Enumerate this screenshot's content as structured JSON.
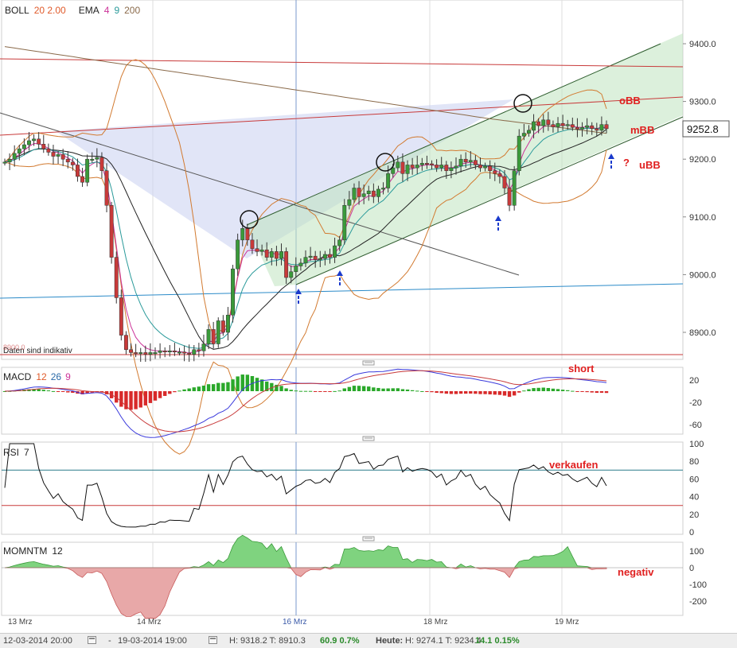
{
  "panels": {
    "price": {
      "legend": [
        {
          "label": "BOLL",
          "params": "20 2.00",
          "color": "#e05a2a"
        },
        {
          "label": "EMA",
          "params": "4",
          "color": "#cc3399",
          "p2": "9",
          "c2": "#2a9a9a",
          "p3": "200",
          "c3": "#8a6a4a"
        }
      ]
    },
    "macd": {
      "label": "MACD",
      "params": [
        "12",
        "26",
        "9"
      ],
      "param_colors": [
        "#e05a2a",
        "#2a6aa8",
        "#cc3399"
      ]
    },
    "rsi": {
      "label": "RSI",
      "params": "7"
    },
    "momentum": {
      "label": "MOMNTM",
      "params": "12"
    }
  },
  "price_axis": {
    "ticks": [
      "9400.0",
      "9300.0",
      "9200.0",
      "9100.0",
      "9000.0",
      "8900.0"
    ],
    "current": "9252.8",
    "hidden_label": "8900.0"
  },
  "macd_axis": {
    "ticks": [
      "20",
      "-20",
      "-60"
    ]
  },
  "rsi_axis": {
    "ticks": [
      "100",
      "80",
      "60",
      "40",
      "20",
      "0"
    ]
  },
  "mom_axis": {
    "ticks": [
      "100",
      "0",
      "-100",
      "-200"
    ]
  },
  "x_axis": {
    "labels": [
      "13 Mrz",
      "14 Mrz",
      "16 Mrz",
      "18 Mrz",
      "19 Mrz"
    ],
    "highlight": "16 Mrz"
  },
  "notes": {
    "disclaimer": "Daten sind indikativ",
    "obb": "oBB",
    "mbb": "mBB",
    "ubb": "uBB",
    "question": "?",
    "short": "short",
    "verkaufen": "verkaufen",
    "negativ": "negativ"
  },
  "footer": {
    "from": "12-03-2014 20:00",
    "to": "19-03-2014 19:00",
    "sep": "-",
    "hl": "H: 9318.2  T: 8910.3",
    "chg": "60.9  0.7%",
    "heute_label": "Heute:",
    "heute_hl": "H: 9274.1  T: 9234.4",
    "heute_chg": "14.1  0.15%"
  },
  "colors": {
    "up": "#3a9a3a",
    "down": "#c83a3a",
    "bb": "#d27a30",
    "ema4": "#cc3399",
    "ema9": "#2a9a9a",
    "ema200": "#8a6a4a",
    "macd": "#3a3adc",
    "signal": "#c83a3a",
    "annot": "#e02020",
    "channel": "#2e5c2e"
  },
  "chart_data": [
    {
      "type": "candlestick",
      "name": "price",
      "ylim": [
        8850,
        9430
      ],
      "close_series": [
        9195,
        9200,
        9210,
        9218,
        9225,
        9232,
        9235,
        9226,
        9218,
        9212,
        9205,
        9208,
        9200,
        9195,
        9190,
        9170,
        9160,
        9200,
        9200,
        9203,
        9180,
        9120,
        9030,
        8960,
        8895,
        8870,
        8865,
        8863,
        8865,
        8862,
        8865,
        8865,
        8868,
        8866,
        8868,
        8866,
        8866,
        8864,
        8862,
        8870,
        8868,
        8880,
        8905,
        8880,
        8920,
        8900,
        8930,
        9010,
        9060,
        9080,
        9060,
        9045,
        9040,
        9043,
        9030,
        9040,
        9028,
        9040,
        8995,
        9005,
        9015,
        9020,
        9030,
        9032,
        9026,
        9028,
        9035,
        9030,
        9050,
        9060,
        9120,
        9130,
        9150,
        9135,
        9140,
        9145,
        9135,
        9148,
        9150,
        9175,
        9185,
        9195,
        9175,
        9190,
        9185,
        9190,
        9193,
        9192,
        9190,
        9185,
        9190,
        9180,
        9185,
        9188,
        9200,
        9195,
        9198,
        9190,
        9185,
        9188,
        9180,
        9175,
        9170,
        9150,
        9120,
        9180,
        9240,
        9245,
        9250,
        9265,
        9258,
        9268,
        9260,
        9256,
        9262,
        9258,
        9260,
        9255,
        9252,
        9255,
        9258,
        9253,
        9250,
        9260,
        9252.8
      ],
      "bollinger_bands": [
        "oBB",
        "mBB",
        "uBB"
      ],
      "ema": [
        4,
        9,
        200
      ]
    },
    {
      "type": "bar+line",
      "name": "MACD",
      "params": [
        12,
        26,
        9
      ],
      "ylim": [
        -70,
        30
      ]
    },
    {
      "type": "line",
      "name": "RSI",
      "params": [
        7
      ],
      "ylim": [
        0,
        100
      ],
      "levels": [
        30,
        70
      ]
    },
    {
      "type": "area",
      "name": "MOMNTM",
      "params": [
        12
      ],
      "ylim": [
        -250,
        150
      ]
    }
  ]
}
